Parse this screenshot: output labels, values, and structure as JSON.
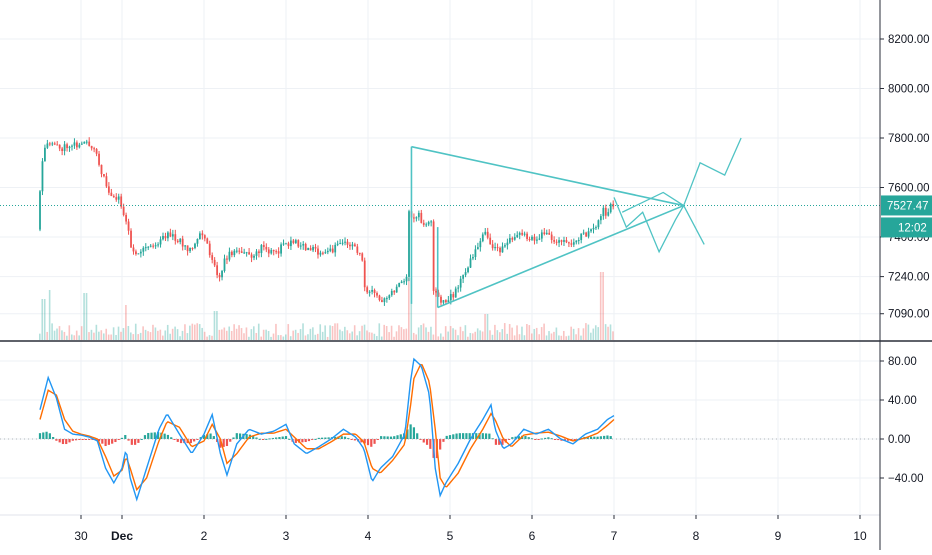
{
  "chart_data": [
    {
      "type": "candlestick",
      "pane": "price",
      "x_axis": {
        "unit": "day",
        "range": [
          -1.0,
          10.25
        ],
        "tick_labels": [
          {
            "x": -0.5,
            "label": "30"
          },
          {
            "x": 0.0,
            "label": "Dec"
          },
          {
            "x": 1.0,
            "label": "2"
          },
          {
            "x": 2.0,
            "label": "3"
          },
          {
            "x": 3.0,
            "label": "4"
          },
          {
            "x": 4.0,
            "label": "5"
          },
          {
            "x": 5.0,
            "label": "6"
          },
          {
            "x": 6.0,
            "label": "7"
          },
          {
            "x": 7.0,
            "label": "8"
          },
          {
            "x": 8.0,
            "label": "9"
          },
          {
            "x": 9.0,
            "label": "10"
          }
        ]
      },
      "y_axis": {
        "range": [
          7050,
          8350
        ],
        "ticks": [
          {
            "value": 8200,
            "label": "8200.00"
          },
          {
            "value": 8000,
            "label": "8000.00"
          },
          {
            "value": 7800,
            "label": "7800.00"
          },
          {
            "value": 7600,
            "label": "7600.00"
          },
          {
            "value": 7400,
            "label": "7400.00"
          },
          {
            "value": 7240,
            "label": "7240.00"
          },
          {
            "value": 7090,
            "label": "7090.00"
          }
        ]
      },
      "price_path": [
        [
          -1.0,
          7430
        ],
        [
          -0.95,
          7700
        ],
        [
          -0.9,
          7790
        ],
        [
          -0.8,
          7770
        ],
        [
          -0.7,
          7760
        ],
        [
          -0.6,
          7780
        ],
        [
          -0.5,
          7770
        ],
        [
          -0.4,
          7780
        ],
        [
          -0.3,
          7760
        ],
        [
          -0.2,
          7640
        ],
        [
          -0.1,
          7560
        ],
        [
          0.0,
          7550
        ],
        [
          0.1,
          7450
        ],
        [
          0.15,
          7330
        ],
        [
          0.3,
          7360
        ],
        [
          0.45,
          7370
        ],
        [
          0.6,
          7420
        ],
        [
          0.7,
          7390
        ],
        [
          0.85,
          7350
        ],
        [
          1.0,
          7420
        ],
        [
          1.1,
          7340
        ],
        [
          1.2,
          7230
        ],
        [
          1.3,
          7320
        ],
        [
          1.45,
          7350
        ],
        [
          1.6,
          7320
        ],
        [
          1.75,
          7360
        ],
        [
          1.9,
          7330
        ],
        [
          2.0,
          7370
        ],
        [
          2.15,
          7380
        ],
        [
          2.3,
          7350
        ],
        [
          2.45,
          7340
        ],
        [
          2.6,
          7350
        ],
        [
          2.75,
          7380
        ],
        [
          2.85,
          7360
        ],
        [
          2.95,
          7330
        ],
        [
          3.0,
          7160
        ],
        [
          3.1,
          7180
        ],
        [
          3.2,
          7150
        ],
        [
          3.3,
          7170
        ],
        [
          3.45,
          7230
        ],
        [
          3.5,
          7240
        ],
        [
          3.52,
          7500
        ],
        [
          3.58,
          7480
        ],
        [
          3.65,
          7490
        ],
        [
          3.7,
          7440
        ],
        [
          3.8,
          7460
        ],
        [
          3.83,
          7180
        ],
        [
          3.9,
          7150
        ],
        [
          4.0,
          7140
        ],
        [
          4.1,
          7180
        ],
        [
          4.2,
          7260
        ],
        [
          4.3,
          7310
        ],
        [
          4.45,
          7420
        ],
        [
          4.6,
          7340
        ],
        [
          4.75,
          7380
        ],
        [
          4.9,
          7410
        ],
        [
          5.05,
          7390
        ],
        [
          5.2,
          7420
        ],
        [
          5.35,
          7380
        ],
        [
          5.5,
          7370
        ],
        [
          5.6,
          7400
        ],
        [
          5.75,
          7420
        ],
        [
          5.85,
          7460
        ],
        [
          5.9,
          7510
        ],
        [
          5.95,
          7490
        ],
        [
          6.0,
          7527
        ]
      ],
      "volume_spikes": [
        {
          "x": -0.95,
          "value": 0.55
        },
        {
          "x": -0.88,
          "value": 0.7
        },
        {
          "x": -0.45,
          "value": 0.65
        },
        {
          "x": 0.05,
          "value": 0.45
        },
        {
          "x": 1.15,
          "value": 0.35
        },
        {
          "x": 3.52,
          "value": 0.9
        },
        {
          "x": 3.83,
          "value": 0.75
        },
        {
          "x": 4.45,
          "value": 0.3
        },
        {
          "x": 5.85,
          "value": 1.0
        }
      ],
      "current_price": {
        "value": 7527.47,
        "label": "7527.47",
        "countdown": "12:02",
        "color": "#26a69a"
      },
      "drawings": [
        {
          "kind": "trendline",
          "points": [
            [
              3.53,
              7765
            ],
            [
              6.85,
              7527
            ]
          ]
        },
        {
          "kind": "trendline",
          "points": [
            [
              3.85,
              7115
            ],
            [
              6.85,
              7527
            ]
          ]
        },
        {
          "kind": "vertical",
          "x": 3.53,
          "from": 7130,
          "to": 7765
        },
        {
          "kind": "vertical",
          "x": 3.85,
          "from": 7115,
          "to": 7440
        },
        {
          "kind": "polyline",
          "points": [
            [
              6.0,
              7560
            ],
            [
              6.15,
              7440
            ],
            [
              6.35,
              7500
            ],
            [
              6.55,
              7340
            ],
            [
              6.75,
              7470
            ],
            [
              6.85,
              7527
            ]
          ]
        },
        {
          "kind": "polyline",
          "points": [
            [
              6.1,
              7500
            ],
            [
              6.6,
              7580
            ],
            [
              6.85,
              7527
            ]
          ]
        },
        {
          "kind": "polyline",
          "points": [
            [
              6.85,
              7527
            ],
            [
              7.05,
              7700
            ],
            [
              7.35,
              7650
            ],
            [
              7.55,
              7800
            ]
          ]
        },
        {
          "kind": "polyline",
          "points": [
            [
              6.85,
              7527
            ],
            [
              7.1,
              7370
            ]
          ]
        }
      ],
      "colors": {
        "up": "#26a69a",
        "down": "#ef5350",
        "drawing": "#4fc3c4"
      }
    },
    {
      "type": "macd",
      "pane": "indicator",
      "y_axis": {
        "range": [
          -63,
          90
        ],
        "ticks": [
          {
            "value": 80,
            "label": "80.00"
          },
          {
            "value": 40,
            "label": "40.00"
          },
          {
            "value": 0,
            "label": "0.00"
          },
          {
            "value": -40,
            "label": "−40.00"
          }
        ]
      },
      "macd_line": [
        [
          -1.0,
          30
        ],
        [
          -0.9,
          63
        ],
        [
          -0.8,
          42
        ],
        [
          -0.7,
          10
        ],
        [
          -0.6,
          5
        ],
        [
          -0.5,
          4
        ],
        [
          -0.4,
          2
        ],
        [
          -0.3,
          -2
        ],
        [
          -0.2,
          -30
        ],
        [
          -0.1,
          -45
        ],
        [
          0.0,
          -30
        ],
        [
          0.05,
          -10
        ],
        [
          0.1,
          -40
        ],
        [
          0.18,
          -62
        ],
        [
          0.3,
          -30
        ],
        [
          0.45,
          10
        ],
        [
          0.55,
          26
        ],
        [
          0.7,
          5
        ],
        [
          0.85,
          -15
        ],
        [
          1.0,
          5
        ],
        [
          1.1,
          25
        ],
        [
          1.2,
          -15
        ],
        [
          1.28,
          -37
        ],
        [
          1.4,
          -5
        ],
        [
          1.55,
          10
        ],
        [
          1.7,
          5
        ],
        [
          1.85,
          8
        ],
        [
          2.0,
          15
        ],
        [
          2.1,
          -5
        ],
        [
          2.25,
          -15
        ],
        [
          2.4,
          -8
        ],
        [
          2.55,
          0
        ],
        [
          2.7,
          10
        ],
        [
          2.85,
          2
        ],
        [
          2.95,
          -10
        ],
        [
          3.05,
          -44
        ],
        [
          3.15,
          -30
        ],
        [
          3.3,
          -18
        ],
        [
          3.45,
          5
        ],
        [
          3.52,
          60
        ],
        [
          3.56,
          82
        ],
        [
          3.65,
          75
        ],
        [
          3.75,
          45
        ],
        [
          3.82,
          -30
        ],
        [
          3.88,
          -58
        ],
        [
          3.95,
          -45
        ],
        [
          4.1,
          -25
        ],
        [
          4.25,
          0
        ],
        [
          4.4,
          20
        ],
        [
          4.5,
          35
        ],
        [
          4.55,
          10
        ],
        [
          4.65,
          -10
        ],
        [
          4.75,
          -5
        ],
        [
          4.9,
          10
        ],
        [
          5.05,
          5
        ],
        [
          5.2,
          10
        ],
        [
          5.35,
          0
        ],
        [
          5.5,
          -5
        ],
        [
          5.65,
          5
        ],
        [
          5.8,
          10
        ],
        [
          5.92,
          20
        ],
        [
          6.0,
          24
        ]
      ],
      "signal_line": [
        [
          -1.0,
          20
        ],
        [
          -0.9,
          50
        ],
        [
          -0.8,
          45
        ],
        [
          -0.7,
          20
        ],
        [
          -0.6,
          8
        ],
        [
          -0.5,
          5
        ],
        [
          -0.4,
          3
        ],
        [
          -0.3,
          0
        ],
        [
          -0.2,
          -18
        ],
        [
          -0.1,
          -38
        ],
        [
          0.0,
          -32
        ],
        [
          0.05,
          -18
        ],
        [
          0.1,
          -30
        ],
        [
          0.18,
          -52
        ],
        [
          0.3,
          -40
        ],
        [
          0.45,
          -2
        ],
        [
          0.55,
          18
        ],
        [
          0.7,
          12
        ],
        [
          0.85,
          -8
        ],
        [
          1.0,
          -2
        ],
        [
          1.1,
          15
        ],
        [
          1.2,
          0
        ],
        [
          1.28,
          -25
        ],
        [
          1.4,
          -15
        ],
        [
          1.55,
          2
        ],
        [
          1.7,
          6
        ],
        [
          1.85,
          6
        ],
        [
          2.0,
          10
        ],
        [
          2.1,
          2
        ],
        [
          2.25,
          -10
        ],
        [
          2.4,
          -10
        ],
        [
          2.55,
          -3
        ],
        [
          2.7,
          5
        ],
        [
          2.85,
          5
        ],
        [
          2.95,
          -3
        ],
        [
          3.05,
          -30
        ],
        [
          3.15,
          -35
        ],
        [
          3.3,
          -22
        ],
        [
          3.45,
          -5
        ],
        [
          3.52,
          35
        ],
        [
          3.56,
          62
        ],
        [
          3.65,
          78
        ],
        [
          3.75,
          58
        ],
        [
          3.82,
          10
        ],
        [
          3.88,
          -40
        ],
        [
          3.95,
          -50
        ],
        [
          4.1,
          -35
        ],
        [
          4.25,
          -10
        ],
        [
          4.4,
          10
        ],
        [
          4.5,
          26
        ],
        [
          4.55,
          20
        ],
        [
          4.65,
          0
        ],
        [
          4.75,
          -8
        ],
        [
          4.9,
          4
        ],
        [
          5.05,
          6
        ],
        [
          5.2,
          7
        ],
        [
          5.35,
          3
        ],
        [
          5.5,
          -2
        ],
        [
          5.65,
          1
        ],
        [
          5.8,
          6
        ],
        [
          5.92,
          14
        ],
        [
          6.0,
          20
        ]
      ],
      "histogram_span": [
        -1.0,
        6.0
      ],
      "colors": {
        "macd": "#2196f3",
        "signal": "#ff6d00",
        "hist_up": "#26a69a",
        "hist_down": "#ef5350"
      }
    }
  ]
}
